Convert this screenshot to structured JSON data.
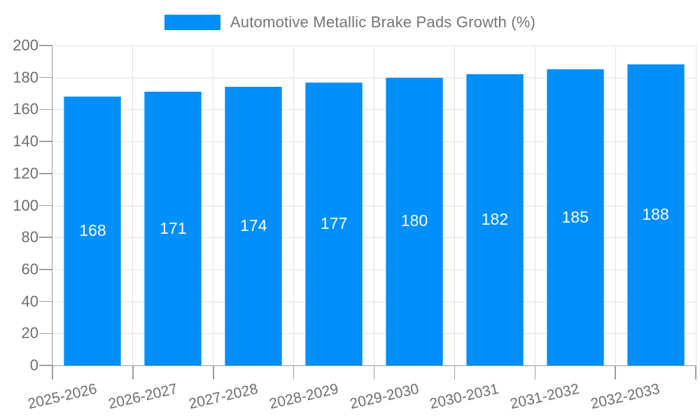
{
  "header": {
    "title": "Automotive Metallic Brake Pads Growth (%)"
  },
  "chart_data": {
    "type": "bar",
    "title": "Automotive Metallic Brake Pads Growth (%)",
    "categories": [
      "2025-2026",
      "2026-2027",
      "2027-2028",
      "2028-2029",
      "2029-2030",
      "2030-2031",
      "2031-2032",
      "2032-2033"
    ],
    "values": [
      168,
      171,
      174,
      177,
      180,
      182,
      185,
      188
    ],
    "xlabel": "",
    "ylabel": "",
    "ylim": [
      0,
      200
    ],
    "ytick_step": 20,
    "yticks": [
      0,
      20,
      40,
      60,
      80,
      100,
      120,
      140,
      160,
      180,
      200
    ],
    "grid": true,
    "legend_position": "top",
    "data_label_position": "center",
    "x_label_rotation_deg": -13,
    "colors": {
      "bar": "#008FFB",
      "bar_label": "#FFFFFF",
      "axis": "#9E9E9E",
      "grid": "#E3E3E3",
      "tick_text": "#6E6E6E",
      "title_text": "#757575",
      "background": "#FFFFFF"
    }
  }
}
